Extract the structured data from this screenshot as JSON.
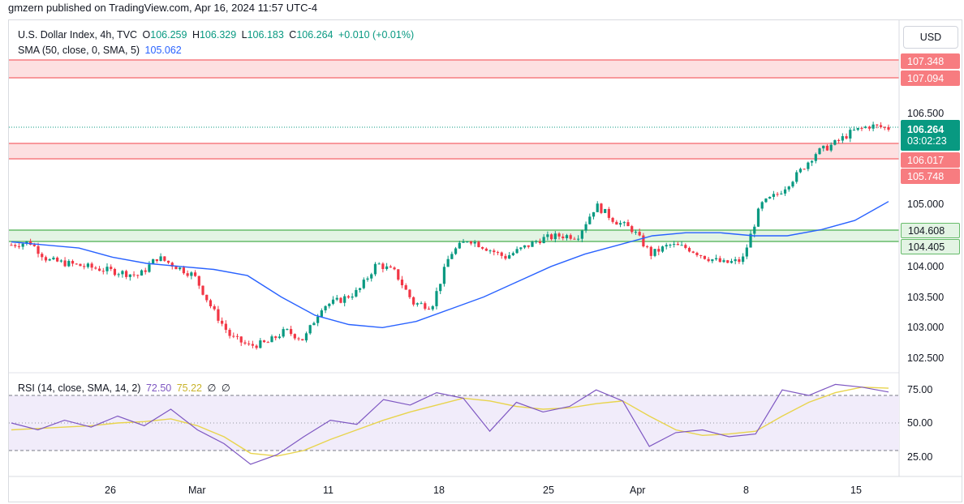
{
  "publisher": "gmzern published on TradingView.com, Apr 16, 2024 11:57 UTC-4",
  "legend": {
    "title": "U.S. Dollar Index, 4h, TVC",
    "o_key": "O",
    "o_val": "106.259",
    "h_key": "H",
    "h_val": "106.329",
    "l_key": "L",
    "l_val": "106.183",
    "c_key": "C",
    "c_val": "106.264",
    "change": "+0.010 (+0.01%)",
    "sma_label": "SMA (50, close, 0, SMA, 5)",
    "sma_val": "105.062"
  },
  "rsi_legend": {
    "label": "RSI (14, close, SMA, 14, 2)",
    "rsi_val": "72.50",
    "rsi_ma_val": "75.22",
    "extra1": "∅",
    "extra2": "∅"
  },
  "currency_button": "USD",
  "price_axis": {
    "ticks": [
      "106.500",
      "105.000",
      "104.000",
      "103.500",
      "103.000",
      "102.500"
    ]
  },
  "rsi_axis": {
    "ticks": [
      "75.00",
      "50.00",
      "25.00"
    ]
  },
  "time_axis": {
    "ticks": [
      "26",
      "Mar",
      "11",
      "18",
      "25",
      "Apr",
      "8",
      "15"
    ]
  },
  "badges": {
    "zone_top_upper": "107.348",
    "zone_top_lower": "107.094",
    "current_price": "106.264",
    "countdown": "03:02:23",
    "zone_mid_upper": "106.017",
    "zone_mid_lower": "105.748",
    "zone_green_upper": "104.608",
    "zone_green_lower": "104.405"
  },
  "colors": {
    "up": "#089981",
    "down": "#f23645",
    "sma": "#2962ff",
    "rsi": "#7e57c2",
    "rsi_ma": "#e8d44d",
    "resistance_line": "#f77c80",
    "resistance_fill": "#fde0e1",
    "support_line": "#66bb6a",
    "support_fill": "#e3f4e4",
    "current_badge": "#089981",
    "resistance_badge": "#f77c80"
  },
  "chart_data": {
    "type": "candlestick",
    "timeframe": "4h",
    "symbol": "U.S. Dollar Index",
    "ohlc_last": {
      "open": 106.259,
      "high": 106.329,
      "low": 106.183,
      "close": 106.264
    },
    "zones": [
      {
        "kind": "resistance",
        "upper": 107.348,
        "lower": 107.094
      },
      {
        "kind": "resistance",
        "upper": 106.017,
        "lower": 105.748
      },
      {
        "kind": "support",
        "upper": 104.608,
        "lower": 104.405
      }
    ],
    "price_path": [
      104.35,
      104.4,
      104.1,
      104.05,
      104.0,
      103.95,
      103.9,
      103.85,
      104.15,
      104.0,
      103.85,
      103.3,
      102.85,
      102.7,
      102.75,
      102.95,
      102.8,
      103.35,
      103.45,
      103.6,
      104.05,
      103.9,
      103.4,
      103.35,
      104.2,
      104.45,
      104.3,
      104.15,
      104.3,
      104.45,
      104.5,
      104.5,
      105.0,
      104.75,
      104.6,
      104.2,
      104.35,
      104.3,
      104.15,
      104.05,
      104.1,
      105.0,
      105.2,
      105.5,
      105.85,
      106.0,
      106.2,
      106.3,
      106.26
    ],
    "sma50_path": [
      104.4,
      104.35,
      104.3,
      104.15,
      104.05,
      104.0,
      103.95,
      103.85,
      103.5,
      103.2,
      103.05,
      103.0,
      103.1,
      103.3,
      103.5,
      103.75,
      104.0,
      104.2,
      104.35,
      104.5,
      104.55,
      104.55,
      104.5,
      104.5,
      104.6,
      104.75,
      105.06
    ],
    "rsi_path": [
      50,
      45,
      52,
      47,
      55,
      48,
      60,
      45,
      35,
      20,
      27,
      40,
      52,
      49,
      67,
      63,
      72,
      68,
      44,
      65,
      58,
      62,
      74,
      66,
      33,
      43,
      45,
      40,
      42,
      74,
      70,
      78,
      76,
      72.5
    ],
    "rsi_ma_path": [
      45,
      46,
      47,
      48,
      50,
      51,
      53,
      48,
      40,
      28,
      26,
      30,
      38,
      45,
      52,
      58,
      63,
      68,
      66,
      62,
      60,
      61,
      64,
      66,
      55,
      45,
      41,
      42,
      44,
      55,
      65,
      72,
      76,
      75.22
    ],
    "price_axis_ticks": [
      106.5,
      105.0,
      104.0,
      103.5,
      103.0,
      102.5
    ],
    "rsi_levels": [
      70,
      50,
      30
    ],
    "x_ticks": [
      "26",
      "Mar",
      "11",
      "18",
      "25",
      "Apr",
      "8",
      "15"
    ]
  }
}
